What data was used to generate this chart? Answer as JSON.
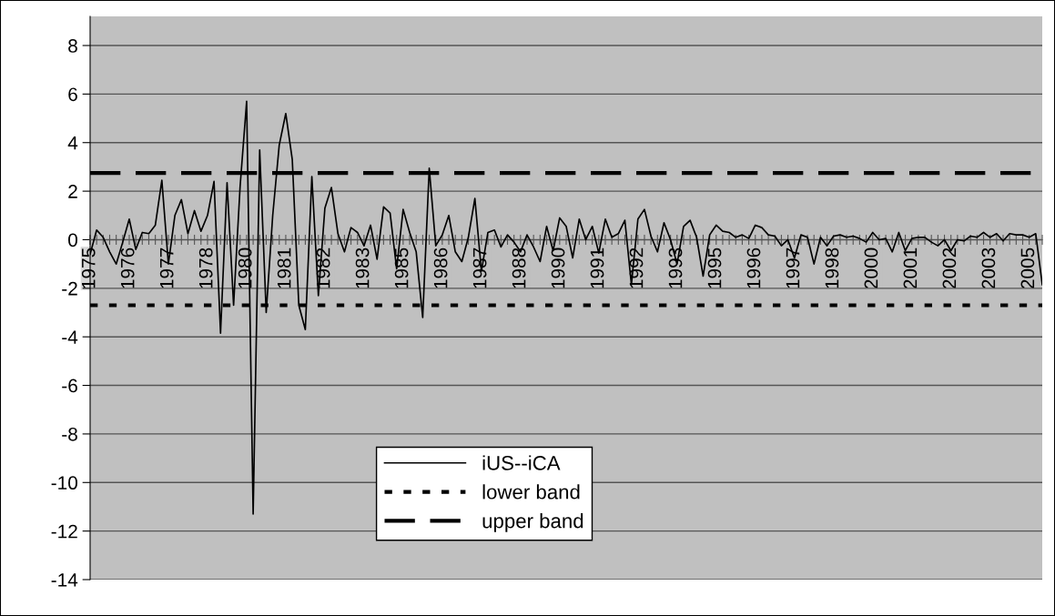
{
  "chart_data": {
    "type": "line",
    "categories": [
      "1975",
      null,
      null,
      null,
      null,
      null,
      "1976",
      null,
      null,
      null,
      null,
      null,
      "1977",
      null,
      null,
      null,
      null,
      null,
      "1978",
      null,
      null,
      null,
      null,
      null,
      "1980",
      null,
      null,
      null,
      null,
      null,
      "1981",
      null,
      null,
      null,
      null,
      null,
      "1982",
      null,
      null,
      null,
      null,
      null,
      "1983",
      null,
      null,
      null,
      null,
      null,
      "1985",
      null,
      null,
      null,
      null,
      null,
      "1986",
      null,
      null,
      null,
      null,
      null,
      "1987",
      null,
      null,
      null,
      null,
      null,
      "1988",
      null,
      null,
      null,
      null,
      null,
      "1990",
      null,
      null,
      null,
      null,
      null,
      "1991",
      null,
      null,
      null,
      null,
      null,
      "1992",
      null,
      null,
      null,
      null,
      null,
      "1993",
      null,
      null,
      null,
      null,
      null,
      "1995",
      null,
      null,
      null,
      null,
      null,
      "1996",
      null,
      null,
      null,
      null,
      null,
      "1997",
      null,
      null,
      null,
      null,
      null,
      "1998",
      null,
      null,
      null,
      null,
      null,
      "2000",
      null,
      null,
      null,
      null,
      null,
      "2001",
      null,
      null,
      null,
      null,
      null,
      "2002",
      null,
      null,
      null,
      null,
      null,
      "2003",
      null,
      null,
      null,
      null,
      null,
      "2005",
      null,
      null
    ],
    "series": [
      {
        "name": "iUS--iCA",
        "color": "#000000",
        "values": [
          -0.6,
          0.4,
          0.1,
          -0.5,
          -1.0,
          -0.1,
          0.85,
          -0.4,
          0.3,
          0.25,
          0.6,
          2.45,
          -1.0,
          1.0,
          1.65,
          0.25,
          1.2,
          0.35,
          1.0,
          2.4,
          -3.85,
          2.35,
          -2.7,
          2.2,
          5.7,
          -11.3,
          3.7,
          -3.0,
          1.0,
          3.9,
          5.2,
          3.3,
          -2.7,
          -3.7,
          2.6,
          -2.3,
          1.3,
          2.15,
          0.25,
          -0.5,
          0.5,
          0.3,
          -0.25,
          0.6,
          -0.8,
          1.35,
          1.1,
          -1.2,
          1.25,
          0.3,
          -0.5,
          -3.2,
          2.95,
          -0.25,
          0.2,
          1.0,
          -0.5,
          -0.9,
          0.1,
          1.7,
          -1.3,
          0.3,
          0.4,
          -0.3,
          0.2,
          -0.1,
          -0.5,
          0.2,
          -0.3,
          -0.9,
          0.55,
          -0.45,
          0.9,
          0.55,
          -0.75,
          0.85,
          0.0,
          0.55,
          -0.55,
          0.85,
          0.1,
          0.25,
          0.8,
          -1.85,
          0.85,
          1.25,
          0.15,
          -0.5,
          0.7,
          0.0,
          -1.0,
          0.55,
          0.8,
          0.1,
          -1.5,
          0.2,
          0.6,
          0.35,
          0.3,
          0.1,
          0.2,
          0.05,
          0.6,
          0.5,
          0.2,
          0.15,
          -0.25,
          0.0,
          -0.75,
          0.2,
          0.1,
          -1.0,
          0.1,
          -0.25,
          0.15,
          0.2,
          0.1,
          0.15,
          0.05,
          -0.1,
          0.3,
          0.0,
          0.05,
          -0.5,
          0.3,
          -0.45,
          0.05,
          0.1,
          0.1,
          -0.1,
          -0.25,
          0.0,
          -0.45,
          0.0,
          -0.05,
          0.15,
          0.1,
          0.3,
          0.1,
          0.25,
          -0.05,
          0.25,
          0.2,
          0.2,
          0.1,
          0.25,
          -1.85
        ]
      }
    ],
    "ref_lines": [
      {
        "axis": "y",
        "value": -2.7,
        "label": "lower band",
        "color": "#000000",
        "line_style": "dotted"
      },
      {
        "axis": "y",
        "value": 2.75,
        "label": "upper band",
        "color": "#000000",
        "line_style": "dashed"
      }
    ],
    "ylim": [
      -14,
      9.2
    ],
    "yticks": [
      -14,
      -12,
      -10,
      -8,
      -6,
      -4,
      -2,
      0,
      2,
      4,
      6,
      8
    ],
    "grid": "y",
    "legend": "bottom",
    "marker": "none",
    "line_style": "solid"
  }
}
